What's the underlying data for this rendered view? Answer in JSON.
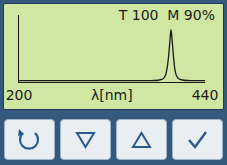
{
  "chart_data": {
    "type": "line",
    "x_label": "λ[nm]",
    "annotations": [
      "T 100",
      "M 90%"
    ],
    "x": [
      200,
      300,
      360,
      371,
      381,
      386,
      389,
      391,
      393,
      395,
      396,
      397,
      399,
      401,
      403,
      406,
      411,
      421,
      440
    ],
    "values": [
      2,
      2,
      2,
      2,
      3,
      5,
      10,
      20,
      38,
      65,
      78,
      70,
      42,
      20,
      10,
      5,
      3,
      2,
      2
    ],
    "color": "#1a1a1a",
    "xlim": [
      200,
      440
    ],
    "xticks": [
      200,
      440
    ],
    "ylim": [
      0,
      100
    ],
    "grid": false,
    "tick_labels": "x"
  }
}
